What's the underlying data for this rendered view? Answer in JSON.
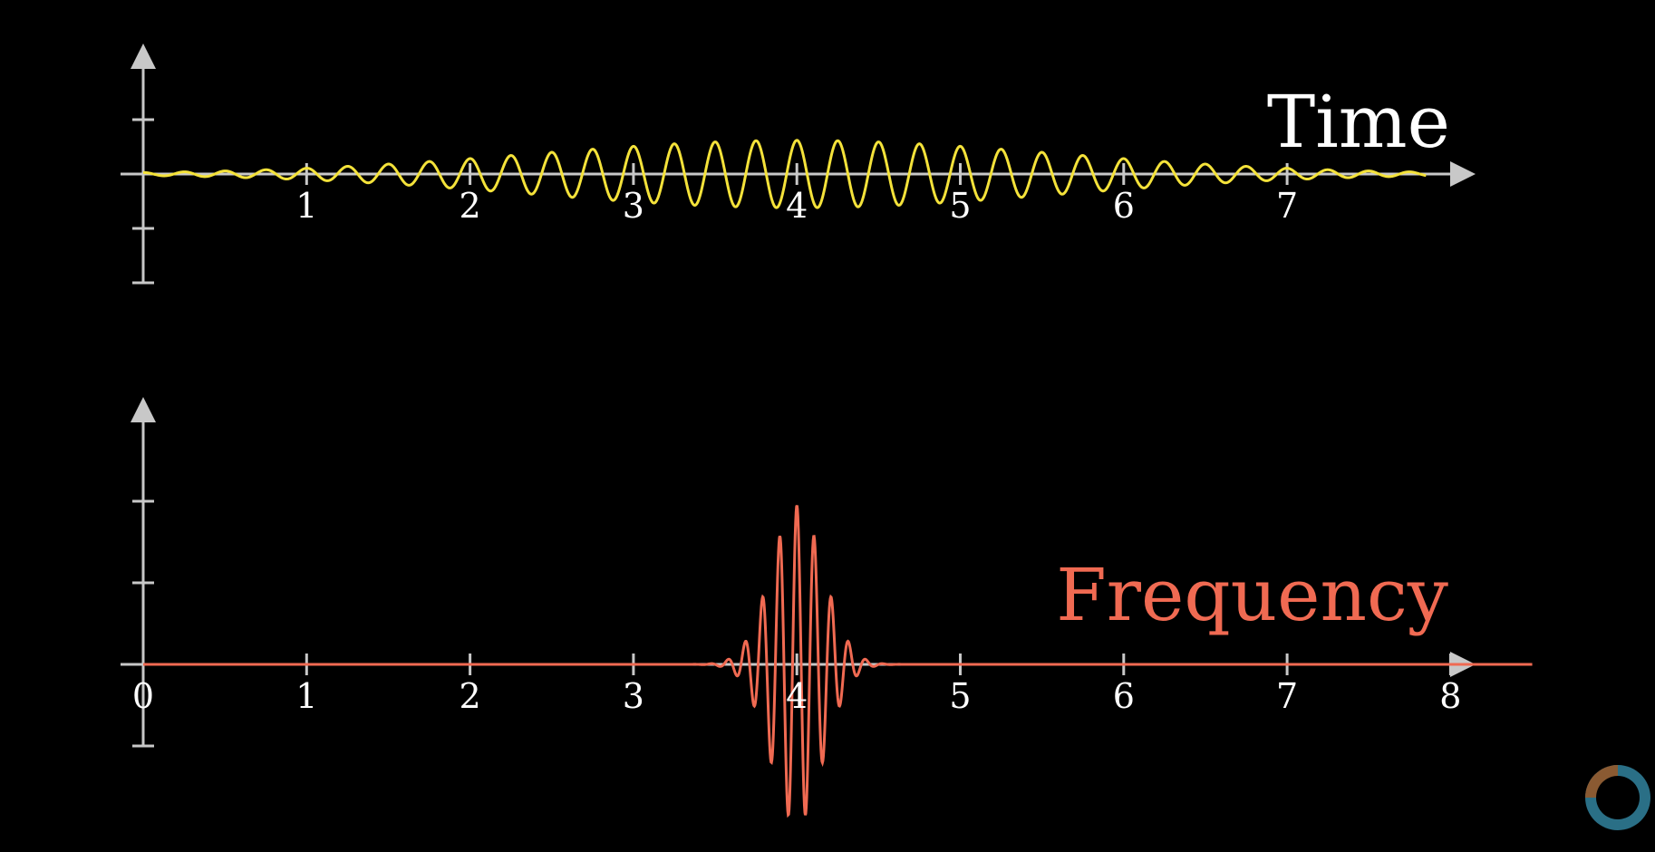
{
  "chart_data": [
    {
      "type": "line",
      "title": "Time",
      "title_color": "#ffffff",
      "series_color": "#f4e23a",
      "x_range": [
        0,
        8
      ],
      "y_range": [
        -2,
        1.2
      ],
      "x_ticks": [
        1,
        2,
        3,
        4,
        5,
        6,
        7
      ],
      "x_tick_labels": [
        "1",
        "2",
        "3",
        "4",
        "5",
        "6",
        "7"
      ],
      "y_ticks": [
        -2,
        -1,
        1
      ],
      "signal": {
        "center": 4,
        "width": 1.6,
        "amplitude": 0.62,
        "cycles_per_unit": 4
      }
    },
    {
      "type": "line",
      "title": "Frequency",
      "title_color": "#f06a52",
      "series_color": "#f06a52",
      "x_range": [
        0,
        8.5
      ],
      "y_range": [
        -1,
        2
      ],
      "x_ticks": [
        0,
        1,
        2,
        3,
        4,
        5,
        6,
        7,
        8
      ],
      "x_tick_labels": [
        "0",
        "1",
        "2",
        "3",
        "4",
        "5",
        "6",
        "7",
        "8"
      ],
      "y_ticks": [
        -1,
        1,
        2
      ],
      "signal": {
        "center": 4,
        "width": 0.16,
        "amplitude": 1.95,
        "cycles_per_unit": 9.5
      }
    }
  ],
  "colors": {
    "axis": "#c8c8c8",
    "background": "#000000"
  }
}
